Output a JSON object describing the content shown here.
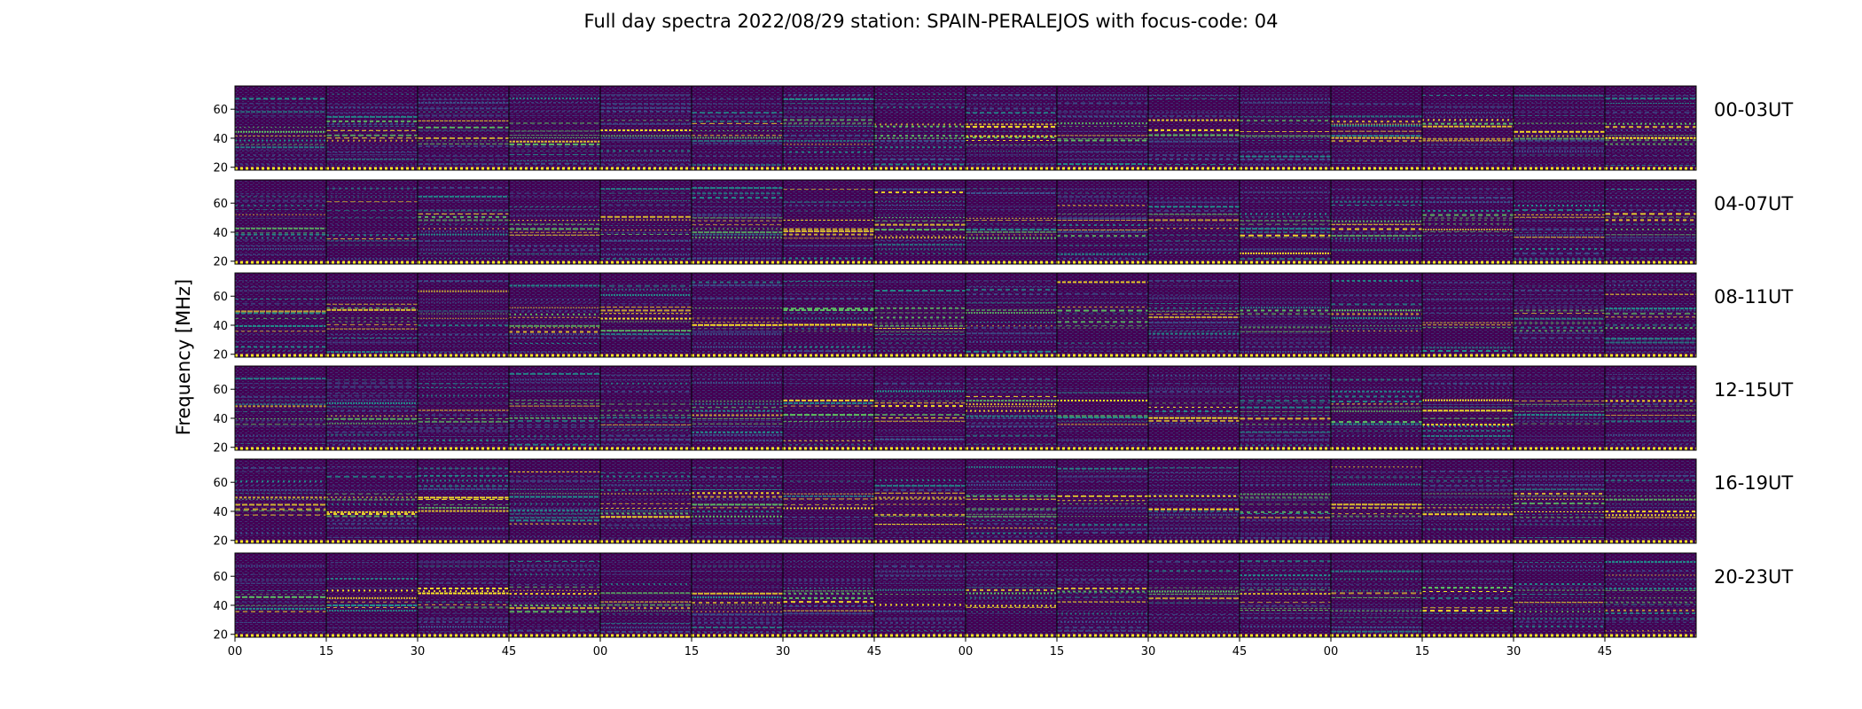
{
  "chart_data": {
    "type": "heatmap",
    "title": "Full day spectra 2022/08/29 station: SPAIN-PERALEJOS with focus-code: 04",
    "ylabel": "Frequency [MHz]",
    "xlabel": "",
    "ylim": [
      18,
      76
    ],
    "y_ticks": [
      "20",
      "40",
      "60"
    ],
    "y_tick_values": [
      20,
      40,
      60
    ],
    "x_tick_labels": [
      "00",
      "15",
      "30",
      "45",
      "00",
      "15",
      "30",
      "45",
      "00",
      "15",
      "30",
      "45",
      "00",
      "15",
      "30",
      "45"
    ],
    "row_labels": [
      "00-03UT",
      "04-07UT",
      "08-11UT",
      "12-15UT",
      "16-19UT",
      "20-23UT"
    ],
    "segments_per_row": 16,
    "segment_minutes": 15,
    "colormap": [
      "#440154",
      "#3b528b",
      "#21918c",
      "#5ec962",
      "#fde725"
    ],
    "grid": false,
    "legend": "none"
  }
}
